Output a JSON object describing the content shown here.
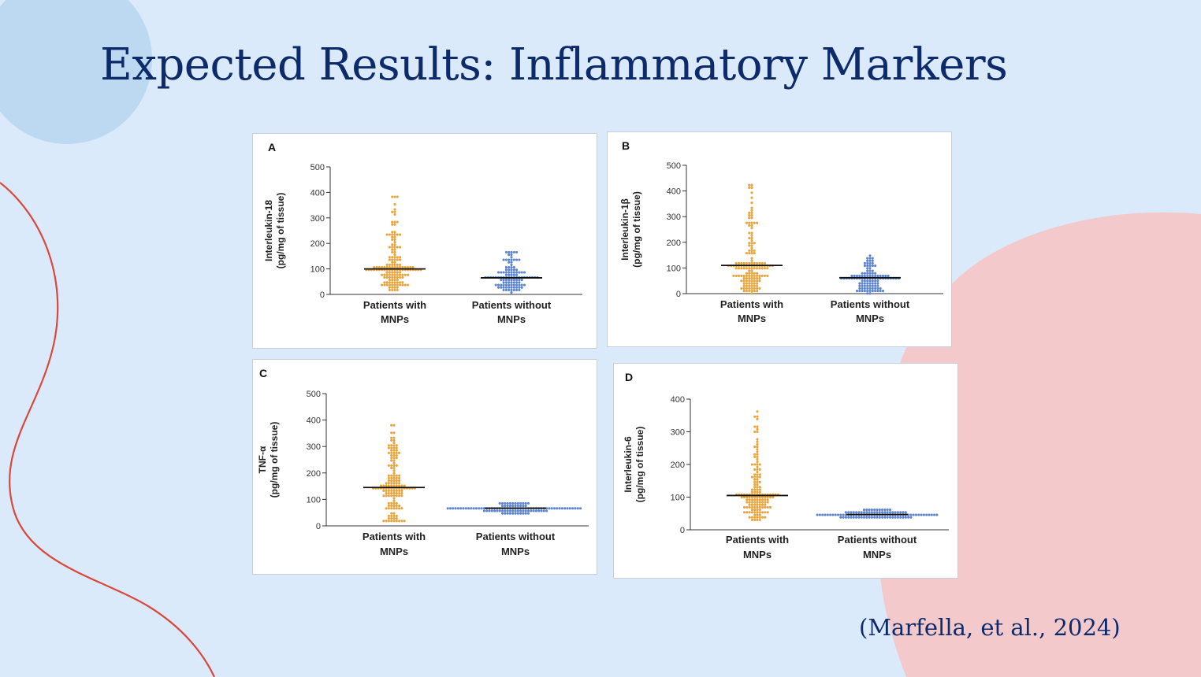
{
  "slide": {
    "title": "Expected Results: Inflammatory Markers",
    "citation": "(Marfella, et al., 2024)"
  },
  "colors": {
    "background": "#dbeafa",
    "title": "#0d2a6b",
    "circle_top_left": "#bdd9f2",
    "blob_right": "#f3c9cb",
    "curve": "#d9483b",
    "with_mnps": "#e8a33a",
    "without_mnps": "#5b83cf"
  },
  "chart_data": [
    {
      "panel": "A",
      "type": "scatter",
      "ylabel_line1": "Interleukin-18",
      "ylabel_line2": "(pg/mg of tissue)",
      "ylim": [
        0,
        500
      ],
      "yticks": [
        "0",
        "100",
        "200",
        "300",
        "400",
        "500"
      ],
      "categories": [
        {
          "line1": "Patients with",
          "line2": "MNPs"
        },
        {
          "line1": "Patients without",
          "line2": "MNPs"
        }
      ],
      "series": [
        {
          "name": "Patients with MNPs",
          "median": 100,
          "min": 15,
          "max": 385,
          "count": 150
        },
        {
          "name": "Patients without MNPs",
          "median": 65,
          "min": 10,
          "max": 170,
          "count": 110
        }
      ]
    },
    {
      "panel": "B",
      "type": "scatter",
      "ylabel_line1": "Interleukin-1β",
      "ylabel_line2": "(pg/mg of tissue)",
      "ylim": [
        0,
        500
      ],
      "yticks": [
        "0",
        "100",
        "200",
        "300",
        "400",
        "500"
      ],
      "categories": [
        {
          "line1": "Patients with",
          "line2": "MNPs"
        },
        {
          "line1": "Patients without",
          "line2": "MNPs"
        }
      ],
      "series": [
        {
          "name": "Patients with MNPs",
          "median": 110,
          "min": 5,
          "max": 420,
          "count": 150
        },
        {
          "name": "Patients without MNPs",
          "median": 62,
          "min": 5,
          "max": 145,
          "count": 110
        }
      ]
    },
    {
      "panel": "C",
      "type": "scatter",
      "ylabel_line1": "TNF-α",
      "ylabel_line2": "(pg/mg of tissue)",
      "ylim": [
        0,
        500
      ],
      "yticks": [
        "0",
        "100",
        "200",
        "300",
        "400",
        "500"
      ],
      "categories": [
        {
          "line1": "Patients with",
          "line2": "MNPs"
        },
        {
          "line1": "Patients without",
          "line2": "MNPs"
        }
      ],
      "series": [
        {
          "name": "Patients with MNPs",
          "median": 145,
          "min": 15,
          "max": 385,
          "count": 150
        },
        {
          "name": "Patients without MNPs",
          "median": 67,
          "min": 45,
          "max": 85,
          "count": 110
        }
      ]
    },
    {
      "panel": "D",
      "type": "scatter",
      "ylabel_line1": "Interleukin-6",
      "ylabel_line2": "(pg/mg of tissue)",
      "ylim": [
        0,
        400
      ],
      "yticks": [
        "0",
        "100",
        "200",
        "300",
        "400"
      ],
      "categories": [
        {
          "line1": "Patients with",
          "line2": "MNPs"
        },
        {
          "line1": "Patients without",
          "line2": "MNPs"
        }
      ],
      "series": [
        {
          "name": "Patients with MNPs",
          "median": 105,
          "min": 30,
          "max": 360,
          "count": 150
        },
        {
          "name": "Patients without MNPs",
          "median": 47,
          "min": 35,
          "max": 60,
          "count": 110
        }
      ]
    }
  ]
}
